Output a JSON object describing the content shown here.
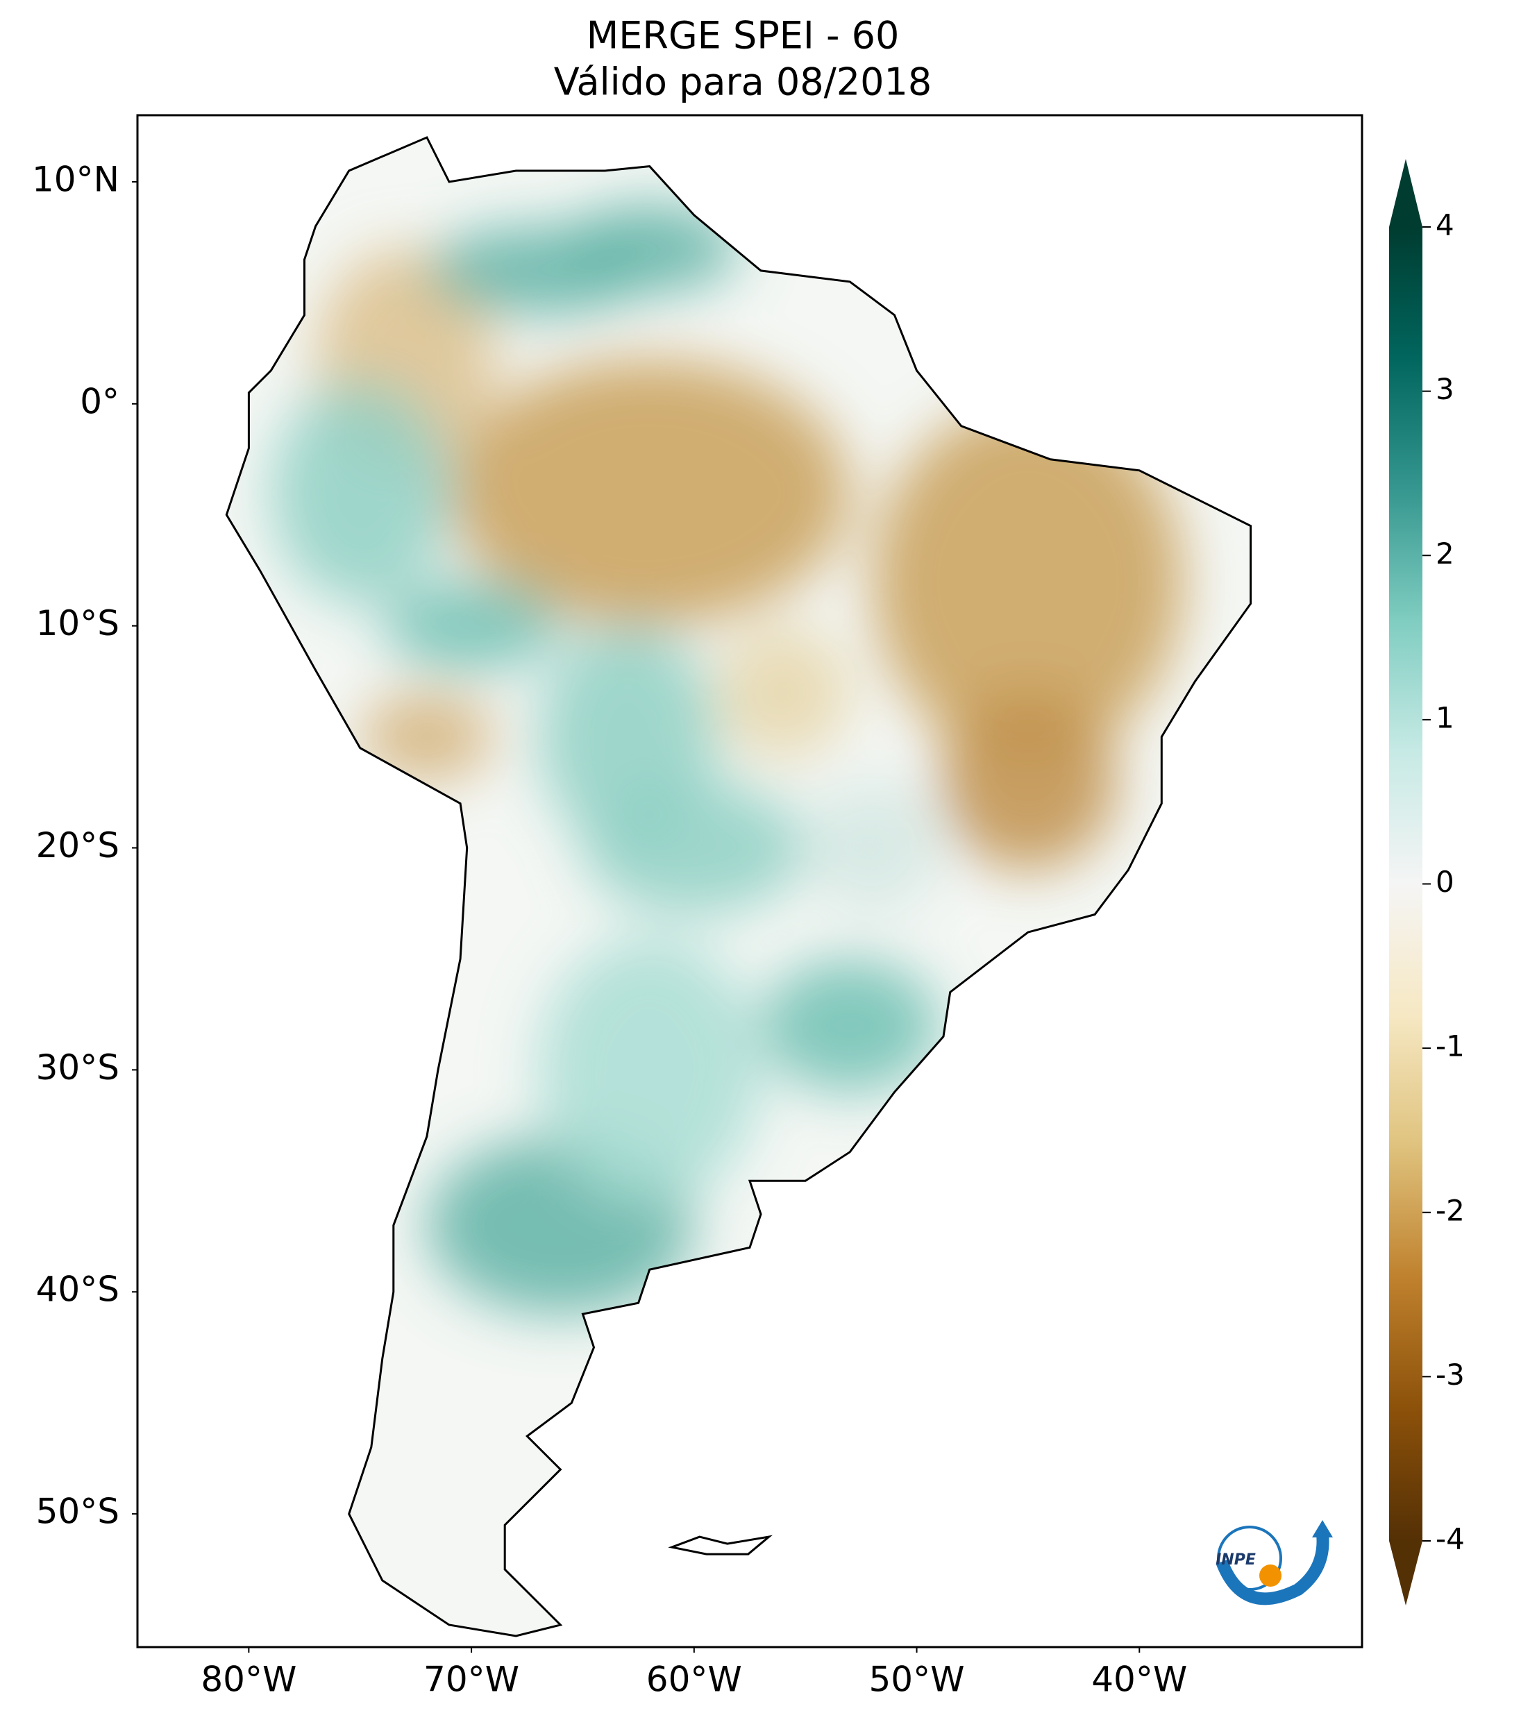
{
  "chart_data": {
    "type": "map",
    "title": [
      "MERGE   SPEI - 60",
      "Válido para 08/2018"
    ],
    "xlim": [
      -85,
      -30
    ],
    "ylim": [
      -56,
      13
    ],
    "xticks": [
      {
        "value": -80,
        "label": "80°W"
      },
      {
        "value": -70,
        "label": "70°W"
      },
      {
        "value": -60,
        "label": "60°W"
      },
      {
        "value": -50,
        "label": "50°W"
      },
      {
        "value": -40,
        "label": "40°W"
      }
    ],
    "yticks": [
      {
        "value": 10,
        "label": "10°N"
      },
      {
        "value": 0,
        "label": "0°"
      },
      {
        "value": -10,
        "label": "10°S"
      },
      {
        "value": -20,
        "label": "20°S"
      },
      {
        "value": -30,
        "label": "30°S"
      },
      {
        "value": -40,
        "label": "40°S"
      },
      {
        "value": -50,
        "label": "50°S"
      }
    ],
    "colorbar": {
      "lim": [
        -4,
        4
      ],
      "ticks": [
        -4,
        -3,
        -2,
        -1,
        0,
        1,
        2,
        3,
        4
      ]
    },
    "logo": "INPE"
  }
}
